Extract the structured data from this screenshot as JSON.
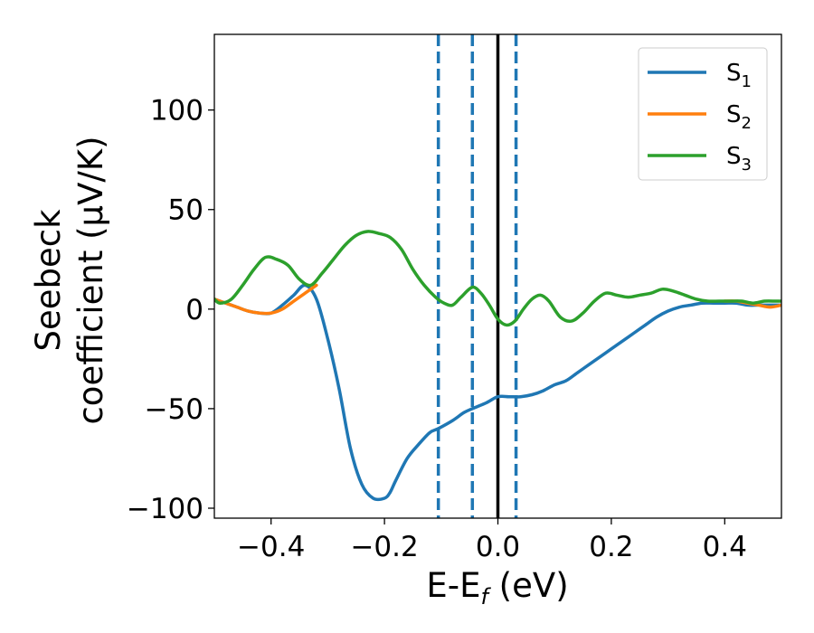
{
  "chart_data": {
    "type": "line",
    "title": "",
    "xlabel": {
      "base": "E-E",
      "sub": "f",
      "tail": " (eV)"
    },
    "ylabel": {
      "line1": "Seebeck",
      "line2": "coefficient  (μV/K)"
    },
    "xlim": [
      -0.5,
      0.5
    ],
    "ylim": [
      -105,
      138
    ],
    "xticks": [
      -0.4,
      -0.2,
      0.0,
      0.2,
      0.4
    ],
    "xtick_labels": [
      "−0.4",
      "−0.2",
      "0.0",
      "0.2",
      "0.4"
    ],
    "yticks": [
      -100,
      -50,
      0,
      50,
      100
    ],
    "ytick_labels": [
      "−100",
      "−50",
      "0",
      "50",
      "100"
    ],
    "grid": false,
    "legend_position": "top-right",
    "vertical_lines": [
      {
        "x": -0.105,
        "style": "dashed",
        "color": "#1f77b4"
      },
      {
        "x": -0.045,
        "style": "dashed",
        "color": "#1f77b4"
      },
      {
        "x": 0.0,
        "style": "solid",
        "color": "#000000"
      },
      {
        "x": 0.032,
        "style": "dashed",
        "color": "#1f77b4"
      }
    ],
    "series": [
      {
        "name": "S",
        "name_sub": "1",
        "color": "#1f77b4",
        "x": [
          -0.5,
          -0.48,
          -0.46,
          -0.44,
          -0.42,
          -0.4,
          -0.38,
          -0.36,
          -0.34,
          -0.32,
          -0.3,
          -0.28,
          -0.26,
          -0.24,
          -0.22,
          -0.2,
          -0.19,
          -0.18,
          -0.16,
          -0.14,
          -0.12,
          -0.105,
          -0.08,
          -0.06,
          -0.045,
          -0.02,
          0.0,
          0.02,
          0.04,
          0.06,
          0.08,
          0.1,
          0.12,
          0.14,
          0.16,
          0.18,
          0.2,
          0.22,
          0.24,
          0.26,
          0.28,
          0.3,
          0.32,
          0.34,
          0.36,
          0.38,
          0.4,
          0.42,
          0.44,
          0.46,
          0.48,
          0.5
        ],
        "y": [
          5,
          3,
          1,
          -1,
          -2,
          -2,
          2,
          7,
          12,
          5,
          -15,
          -40,
          -70,
          -88,
          -95,
          -95,
          -92,
          -86,
          -75,
          -68,
          -62,
          -60,
          -56,
          -52,
          -50,
          -47,
          -44,
          -44,
          -44,
          -43,
          -41,
          -38,
          -36,
          -32,
          -28,
          -24,
          -20,
          -16,
          -12,
          -8,
          -4,
          -1,
          1,
          2,
          3,
          3,
          3,
          3,
          2,
          2,
          2,
          2
        ]
      },
      {
        "name": "S",
        "name_sub": "2",
        "color": "#ff7f0e",
        "x": [
          -0.5,
          -0.48,
          -0.46,
          -0.44,
          -0.42,
          -0.4,
          -0.38,
          -0.36,
          -0.34,
          -0.32,
          0.4,
          0.42,
          0.44,
          0.46,
          0.48,
          0.5
        ],
        "y": [
          5,
          3,
          1,
          -1,
          -2,
          -2,
          0,
          4,
          8,
          12,
          4,
          4,
          3,
          2,
          1,
          2
        ]
      },
      {
        "name": "S",
        "name_sub": "3",
        "color": "#2ca02c",
        "x": [
          -0.5,
          -0.49,
          -0.47,
          -0.45,
          -0.43,
          -0.41,
          -0.39,
          -0.37,
          -0.35,
          -0.33,
          -0.31,
          -0.29,
          -0.27,
          -0.25,
          -0.23,
          -0.21,
          -0.19,
          -0.17,
          -0.15,
          -0.13,
          -0.11,
          -0.095,
          -0.08,
          -0.065,
          -0.045,
          -0.03,
          -0.015,
          0.0,
          0.015,
          0.03,
          0.045,
          0.06,
          0.075,
          0.09,
          0.11,
          0.13,
          0.15,
          0.17,
          0.19,
          0.21,
          0.23,
          0.25,
          0.27,
          0.29,
          0.31,
          0.33,
          0.35,
          0.37,
          0.39,
          0.41,
          0.43,
          0.45,
          0.47,
          0.49,
          0.5
        ],
        "y": [
          5,
          3,
          5,
          12,
          20,
          26,
          25,
          22,
          15,
          12,
          18,
          25,
          32,
          37,
          39,
          38,
          36,
          30,
          20,
          12,
          6,
          3,
          2,
          6,
          11,
          8,
          2,
          -5,
          -8,
          -6,
          0,
          5,
          7,
          4,
          -4,
          -6,
          -2,
          4,
          8,
          7,
          6,
          7,
          8,
          10,
          9,
          7,
          5,
          4,
          4,
          4,
          4,
          3,
          4,
          4,
          4
        ]
      }
    ]
  }
}
